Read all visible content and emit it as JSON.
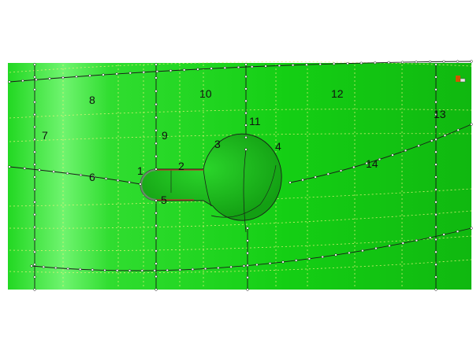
{
  "colors": {
    "surface_light": "#5df05d",
    "surface_main": "#17d417",
    "surface_dark": "#0ea80e",
    "hole_fill": "#22cc22",
    "edge": "#1a1a1a",
    "highlight_edge": "#c0392b",
    "seed_line": "#e8f27a",
    "background": "#ffffff"
  },
  "labels": {
    "l1": "1",
    "l2": "2",
    "l3": "3",
    "l4": "4",
    "l5": "5",
    "l6": "6",
    "l7": "7",
    "l8": "8",
    "l9": "9",
    "l10": "10",
    "l11": "11",
    "l12": "12",
    "l13": "13",
    "l14": "14"
  },
  "icons": {
    "corner_marker": "view-triad-icon"
  }
}
